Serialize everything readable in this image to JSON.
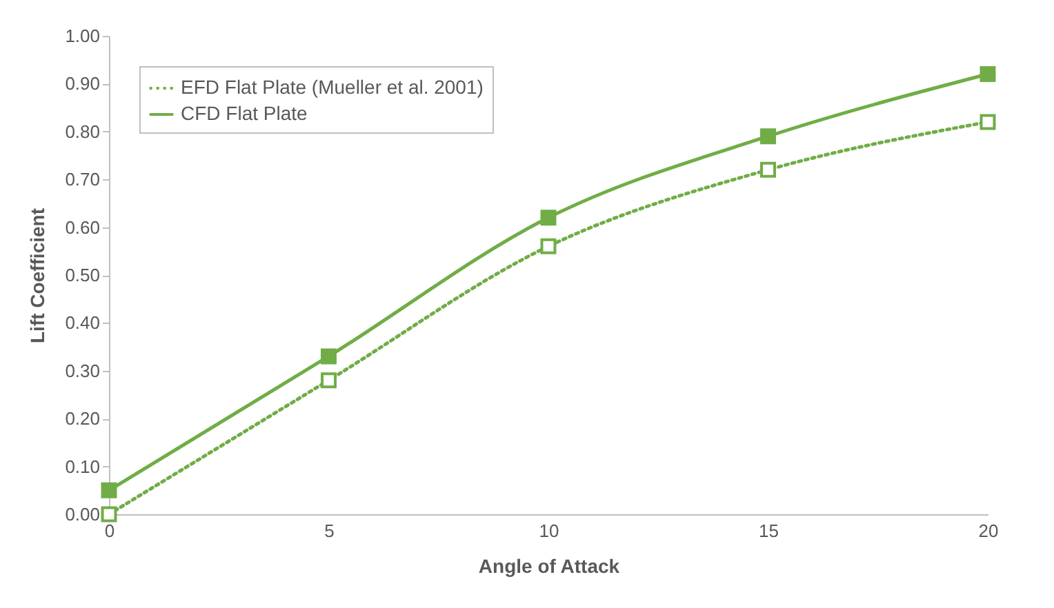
{
  "chart_data": {
    "type": "line",
    "xlabel": "Angle of Attack",
    "ylabel": "Lift Coefficient",
    "x": [
      0,
      5,
      10,
      15,
      20
    ],
    "series": [
      {
        "name": "EFD Flat Plate (Mueller et al. 2001)",
        "color": "#70ad47",
        "line_style": "dotted",
        "values": [
          0,
          0.28,
          0.56,
          0.72,
          0.82
        ]
      },
      {
        "name": "CFD Flat Plate",
        "color": "#70ad47",
        "line_style": "solid",
        "values": [
          0.05,
          0.33,
          0.62,
          0.79,
          0.92
        ]
      }
    ],
    "xlim": [
      0,
      20
    ],
    "xticks": [
      0,
      5,
      10,
      15,
      20
    ],
    "ylim": [
      0,
      1
    ],
    "yticks": [
      {
        "value": 0,
        "label": "0.00"
      },
      {
        "value": 0.1,
        "label": "0.10"
      },
      {
        "value": 0.2,
        "label": "0.20"
      },
      {
        "value": 0.3,
        "label": "0.30"
      },
      {
        "value": 0.4,
        "label": "0.40"
      },
      {
        "value": 0.5,
        "label": "0.50"
      },
      {
        "value": 0.6,
        "label": "0.60"
      },
      {
        "value": 0.7,
        "label": "0.70"
      },
      {
        "value": 0.8,
        "label": "0.80"
      },
      {
        "value": 0.9,
        "label": "0.90"
      },
      {
        "value": 1,
        "label": "1.00"
      }
    ],
    "marker": "square",
    "legend": "top left",
    "grid": false
  }
}
